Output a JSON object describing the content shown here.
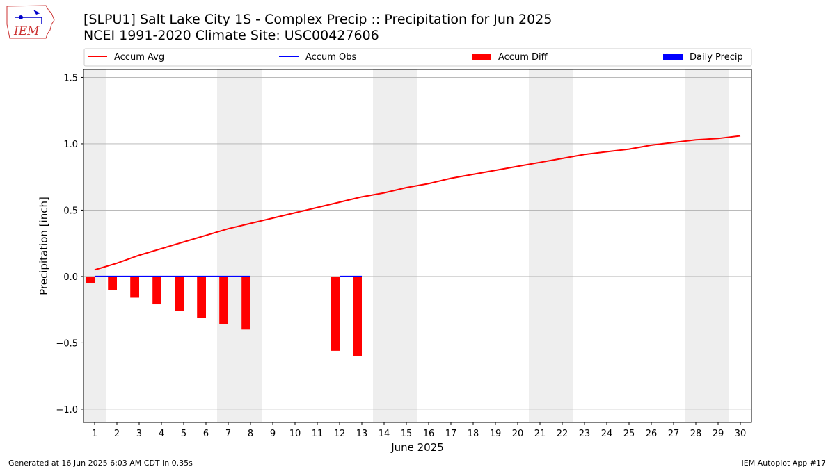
{
  "header": {
    "title_line1": "[SLPU1] Salt Lake City 1S - Complex Precip :: Precipitation for Jun 2025",
    "title_line2": "NCEI 1991-2020 Climate Site: USC00427606",
    "logo_text": "IEM"
  },
  "footer": {
    "left": "Generated at 16 Jun 2025 6:03 AM CDT in 0.35s",
    "right": "IEM Autoplot App #17"
  },
  "colors": {
    "accum_avg": "#ff0000",
    "accum_obs": "#0000ff",
    "accum_diff": "#ff0000",
    "daily_precip": "#0000ff",
    "weekend_band": "#eeeeee",
    "grid": "#b0b0b0"
  },
  "chart_data": {
    "type": "bar",
    "xlabel": "June 2025",
    "ylabel": "Precipitation [inch]",
    "xlim": [
      0.5,
      30.5
    ],
    "ylim": [
      -1.1,
      1.56
    ],
    "x_ticks": [
      1,
      2,
      3,
      4,
      5,
      6,
      7,
      8,
      9,
      10,
      11,
      12,
      13,
      14,
      15,
      16,
      17,
      18,
      19,
      20,
      21,
      22,
      23,
      24,
      25,
      26,
      27,
      28,
      29,
      30
    ],
    "y_ticks": [
      {
        "value": 1.5,
        "label": "1.5"
      },
      {
        "value": 1.0,
        "label": "1.0"
      },
      {
        "value": 0.5,
        "label": "0.5"
      },
      {
        "value": 0.0,
        "label": "0.0"
      },
      {
        "value": -0.5,
        "label": "−0.5"
      },
      {
        "value": -1.0,
        "label": "−1.0"
      }
    ],
    "grid": "horizontal",
    "legend_position": "top",
    "weekend_bands": [
      [
        0.5,
        1.5
      ],
      [
        6.5,
        8.5
      ],
      [
        13.5,
        15.5
      ],
      [
        20.5,
        22.5
      ],
      [
        27.5,
        29.5
      ]
    ],
    "series": [
      {
        "name": "Accum Avg",
        "kind": "line",
        "x": [
          1,
          2,
          3,
          4,
          5,
          6,
          7,
          8,
          9,
          10,
          11,
          12,
          13,
          14,
          15,
          16,
          17,
          18,
          19,
          20,
          21,
          22,
          23,
          24,
          25,
          26,
          27,
          28,
          29,
          30
        ],
        "values": [
          0.05,
          0.1,
          0.16,
          0.21,
          0.26,
          0.31,
          0.36,
          0.4,
          0.44,
          0.48,
          0.52,
          0.56,
          0.6,
          0.63,
          0.67,
          0.7,
          0.74,
          0.77,
          0.8,
          0.83,
          0.86,
          0.89,
          0.92,
          0.94,
          0.96,
          0.99,
          1.01,
          1.03,
          1.04,
          1.06
        ]
      },
      {
        "name": "Accum Obs",
        "kind": "line",
        "x": [
          1,
          2,
          3,
          4,
          5,
          6,
          7,
          8,
          12,
          13
        ],
        "values": [
          0,
          0,
          0,
          0,
          0,
          0,
          0,
          0,
          0,
          0
        ]
      },
      {
        "name": "Accum Diff",
        "kind": "bar",
        "x": [
          1,
          2,
          3,
          4,
          5,
          6,
          7,
          8,
          12,
          13
        ],
        "values": [
          -0.05,
          -0.1,
          -0.16,
          -0.21,
          -0.26,
          -0.31,
          -0.36,
          -0.4,
          -0.56,
          -0.6
        ]
      },
      {
        "name": "Daily Precip",
        "kind": "bar",
        "x": [
          1,
          2,
          3,
          4,
          5,
          6,
          7,
          8,
          12,
          13
        ],
        "values": [
          0,
          0,
          0,
          0,
          0,
          0,
          0,
          0,
          0,
          0
        ]
      }
    ]
  }
}
